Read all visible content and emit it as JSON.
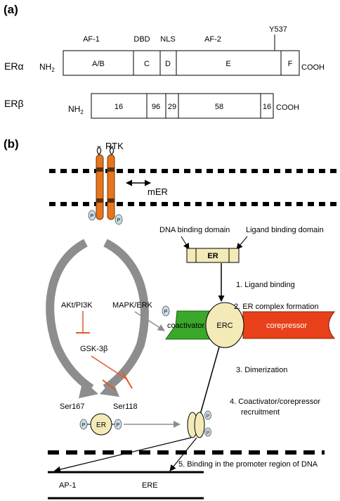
{
  "panel_a": {
    "label": "(a)",
    "top_labels": {
      "af1": "AF-1",
      "dbd": "DBD",
      "nls": "NLS",
      "af2": "AF-2",
      "y537": "Y537"
    },
    "er_alpha": {
      "name": "ERα",
      "nh2": "NH",
      "sub": "2",
      "domains": [
        "A/B",
        "C",
        "D",
        "E",
        "F"
      ],
      "cooh": "COOH"
    },
    "er_beta": {
      "name": "ERβ",
      "nh2": "NH",
      "sub": "2",
      "homology": [
        "16",
        "96",
        "29",
        "58",
        "16"
      ],
      "cooh": "COOH"
    }
  },
  "panel_b": {
    "label": "(b)",
    "rtk": "RTK",
    "mer": "mER",
    "phospho": "P",
    "dna_binding_domain": "DNA binding domain",
    "ligand_binding_domain": "Ligand binding domain",
    "er_box": "ER",
    "akt": "AKt/PI3K",
    "mapk": "MAPK/ERK",
    "gsk": "GSK-3β",
    "coactivator": "coactivator",
    "erc": "ERC",
    "corepressor": "corepressor",
    "ser167": "Ser167",
    "ser118": "Ser118",
    "er_circle": "ER",
    "steps": {
      "s1": "1. Ligand binding",
      "s2": "2. ER complex formation",
      "s3": "3. Dimerization",
      "s4a": "4. Coactivator/corepressor",
      "s4b": "recruitment",
      "s5": "5. Binding in the promoter region of DNA"
    },
    "ap1": "AP-1",
    "ere": "ERE"
  },
  "colors": {
    "receptor": "#e8741c",
    "phospho": "#c9dde8",
    "er_fill": "#f3eab8",
    "coactivator": "#3aa82a",
    "corepressor": "#e8401a",
    "gray_arrow": "#8d8d8d",
    "inhibit": "#e05a2a"
  }
}
